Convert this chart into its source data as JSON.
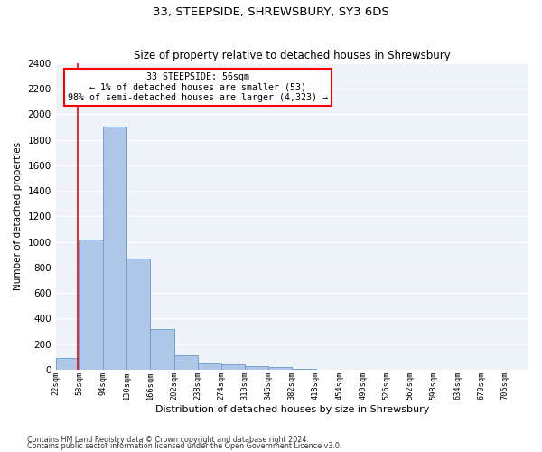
{
  "title": "33, STEEPSIDE, SHREWSBURY, SY3 6DS",
  "subtitle": "Size of property relative to detached houses in Shrewsbury",
  "xlabel": "Distribution of detached houses by size in Shrewsbury",
  "ylabel": "Number of detached properties",
  "bar_color": "#aec6e8",
  "bar_edge_color": "#6699cc",
  "background_color": "#eef2f9",
  "grid_color": "#ffffff",
  "annotation_text": "33 STEEPSIDE: 56sqm\n← 1% of detached houses are smaller (53)\n98% of semi-detached houses are larger (4,323) →",
  "property_line_x": 56,
  "bins": [
    22,
    58,
    94,
    130,
    166,
    202,
    238,
    274,
    310,
    346,
    382,
    418,
    454,
    490,
    526,
    562,
    598,
    634,
    670,
    706,
    742
  ],
  "bar_heights": [
    90,
    1020,
    1900,
    870,
    320,
    115,
    50,
    40,
    30,
    20,
    5,
    3,
    2,
    1,
    0,
    0,
    0,
    0,
    0,
    0
  ],
  "ylim": [
    0,
    2400
  ],
  "yticks": [
    0,
    200,
    400,
    600,
    800,
    1000,
    1200,
    1400,
    1600,
    1800,
    2000,
    2200,
    2400
  ],
  "footnote1": "Contains HM Land Registry data © Crown copyright and database right 2024.",
  "footnote2": "Contains public sector information licensed under the Open Government Licence v3.0."
}
